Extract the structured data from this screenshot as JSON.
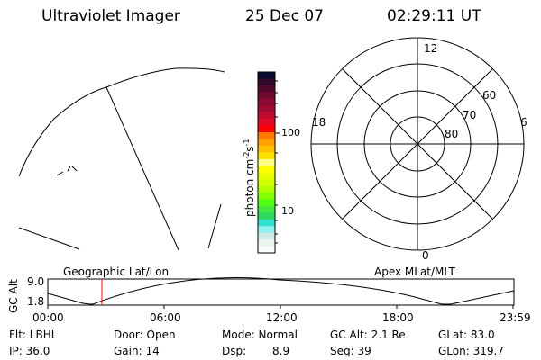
{
  "header": {
    "instrument": "Ultraviolet Imager",
    "date": "25 Dec 07",
    "time": "02:29:11 UT"
  },
  "colorbar": {
    "label": "photon cm",
    "label_sup1": "-2",
    "label_mid": "s",
    "label_sup2": "-1",
    "ticks": [
      "100",
      "10"
    ],
    "scale": "log",
    "colors": [
      "#0a0a30",
      "#300a28",
      "#50082c",
      "#700a30",
      "#880a30",
      "#a00a30",
      "#c00a30",
      "#e00a28",
      "#ff0000",
      "#ff7800",
      "#ffa000",
      "#ffc000",
      "#ffe000",
      "#ffff80",
      "#ffff00",
      "#eaff00",
      "#d0ff00",
      "#b0ff00",
      "#80ff00",
      "#50ff10",
      "#40e840",
      "#30d860",
      "#30e0d0",
      "#90f0f0",
      "#d0e8e8",
      "#e8f4ec",
      "#f8fcf8"
    ]
  },
  "polar": {
    "labels": {
      "top": "12",
      "bottom": "0",
      "left": "18",
      "right": "6"
    },
    "rings": [
      "80",
      "70",
      "60"
    ]
  },
  "timeline": {
    "left_label": "Geographic Lat/Lon",
    "right_label": "Apex MLat/MLT",
    "axis_label": "GC Alt",
    "y_ticks": [
      "9.0",
      "1.8"
    ],
    "x_ticks": [
      "00:00",
      "06:00",
      "12:00",
      "18:00",
      "23:59"
    ],
    "current_time_marker_color": "#ff0000"
  },
  "status": {
    "flt": "Flt: LBHL",
    "ip": "IP: 36.0",
    "door": "Door: Open",
    "gain": "Gain: 14",
    "mode": "Mode: Normal",
    "dsp_label": "Dsp:",
    "dsp_value": "8.9",
    "gcalt": "GC Alt: 2.1 Re",
    "seq": "Seq: 39",
    "glat": "GLat:  83.0",
    "glon": "GLon: 319.7"
  }
}
